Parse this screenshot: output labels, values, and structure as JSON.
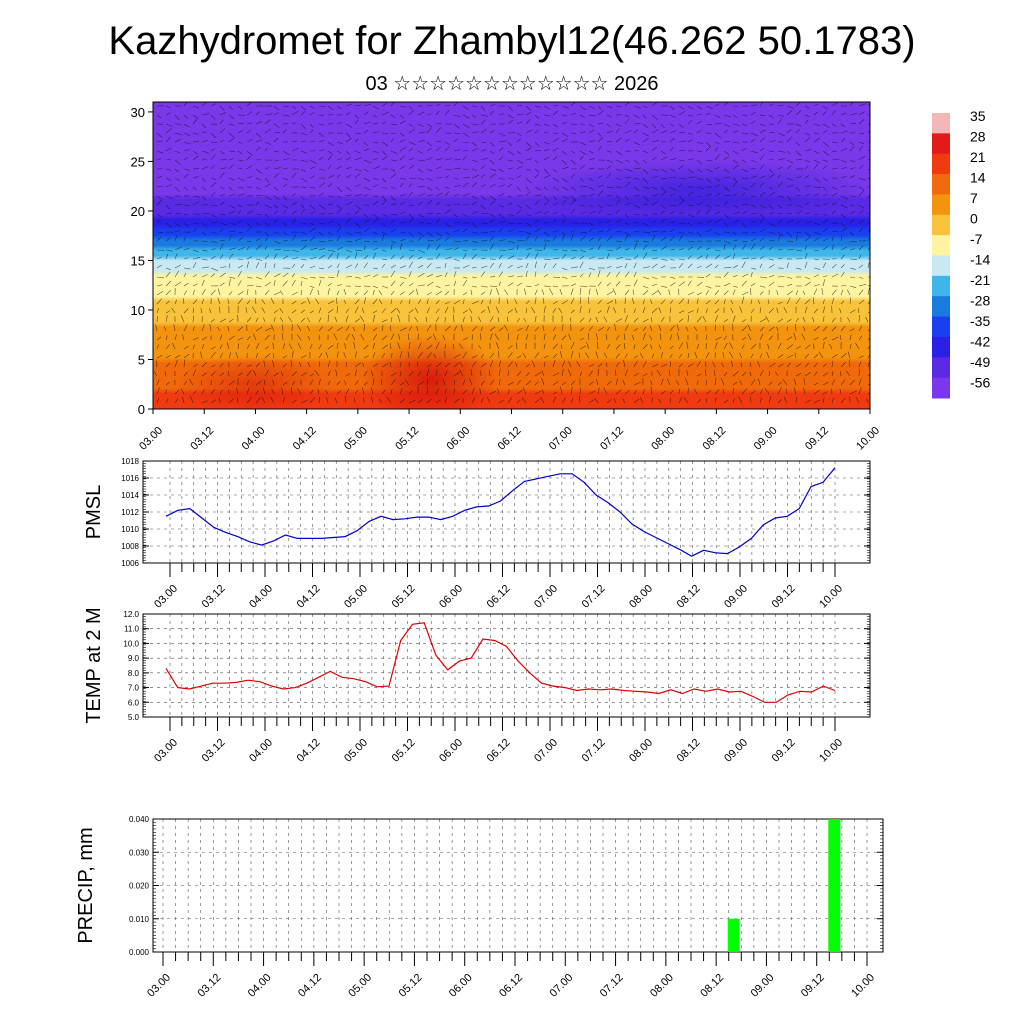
{
  "header": {
    "title": "Kazhydromet for Zhambyl12(46.262 50.1783)",
    "subtitle": "03 ☆☆☆☆☆☆☆☆☆☆☆☆ 2026"
  },
  "chart_data": [
    {
      "id": "cross_section",
      "type": "heatmap",
      "title": "",
      "x_ticks": [
        "03.00",
        "03.12",
        "04.00",
        "04.12",
        "05.00",
        "05.12",
        "06.00",
        "06.12",
        "07.00",
        "07.12",
        "08.00",
        "08.12",
        "09.00",
        "09.12",
        "10.00"
      ],
      "y_ticks": [
        0,
        5,
        10,
        15,
        20,
        25,
        30
      ],
      "ylim": [
        0,
        31
      ],
      "colorbar": {
        "labels": [
          "35",
          "28",
          "21",
          "14",
          "7",
          "0",
          "-7",
          "-14",
          "-21",
          "-28",
          "-35",
          "-42",
          "-49",
          "-56"
        ],
        "colors": [
          "#f2b8b8",
          "#e21a1a",
          "#f03a10",
          "#f06a0c",
          "#f4930e",
          "#f8c23a",
          "#fdf3a0",
          "#c8e8f2",
          "#3fb6ea",
          "#1a7ae0",
          "#1a3ff0",
          "#2a20e6",
          "#5a2ae4",
          "#7a38ea"
        ]
      },
      "temperature_profile": [
        {
          "height": 0,
          "value": 25
        },
        {
          "height": 5,
          "value": 14
        },
        {
          "height": 10,
          "value": 4
        },
        {
          "height": 14,
          "value": -8
        },
        {
          "height": 17,
          "value": -25
        },
        {
          "height": 20,
          "value": -45
        },
        {
          "height": 24,
          "value": -56
        },
        {
          "height": 27,
          "value": -50
        },
        {
          "height": 31,
          "value": -56
        }
      ],
      "wind_vectors": true
    },
    {
      "id": "pmsl",
      "type": "line",
      "ylabel": "PMSL",
      "x_ticks": [
        "03.00",
        "03.12",
        "04.00",
        "04.12",
        "05.00",
        "05.12",
        "06.00",
        "06.12",
        "07.00",
        "07.12",
        "08.00",
        "08.12",
        "09.00",
        "09.12",
        "10.00"
      ],
      "y_ticks": [
        "1006",
        "1008",
        "1010",
        "1012",
        "1014",
        "1016",
        "1018"
      ],
      "ylim": [
        1006,
        1018
      ],
      "color": "#0000cc",
      "series": [
        {
          "values": [
            1011.5,
            1012.2,
            1012.4,
            1011.3,
            1010.2,
            1009.6,
            1009.1,
            1008.5,
            1008.1,
            1008.6,
            1009.3,
            1008.9,
            1008.9,
            1008.9,
            1009.0,
            1009.1,
            1009.8,
            1010.9,
            1011.5,
            1011.1,
            1011.2,
            1011.4,
            1011.4,
            1011.1,
            1011.5,
            1012.2,
            1012.6,
            1012.7,
            1013.3,
            1014.5,
            1015.6,
            1015.9,
            1016.2,
            1016.5,
            1016.5,
            1015.5,
            1014.0,
            1013.1,
            1012.0,
            1010.6,
            1009.7,
            1009.0,
            1008.3,
            1007.6,
            1006.8,
            1007.5,
            1007.2,
            1007.1,
            1007.9,
            1008.9,
            1010.5,
            1011.3,
            1011.5,
            1012.4,
            1015.0,
            1015.5,
            1017.2
          ]
        }
      ]
    },
    {
      "id": "temp2m",
      "type": "line",
      "ylabel": "TEMP at 2 M",
      "x_ticks": [
        "03.00",
        "03.12",
        "04.00",
        "04.12",
        "05.00",
        "05.12",
        "06.00",
        "06.12",
        "07.00",
        "07.12",
        "08.00",
        "08.12",
        "09.00",
        "09.12",
        "10.00"
      ],
      "y_ticks": [
        "5.0",
        "6.0",
        "7.0",
        "8.0",
        "9.0",
        "10.0",
        "11.0",
        "12.0"
      ],
      "ylim": [
        5,
        12
      ],
      "color": "#dd0000",
      "series": [
        {
          "values": [
            8.3,
            7.0,
            6.9,
            7.1,
            7.3,
            7.3,
            7.35,
            7.5,
            7.4,
            7.1,
            6.9,
            7.0,
            7.3,
            7.7,
            8.1,
            7.7,
            7.6,
            7.4,
            7.05,
            7.1,
            10.2,
            11.3,
            11.4,
            9.2,
            8.2,
            8.8,
            9.0,
            10.3,
            10.2,
            9.8,
            8.8,
            8.0,
            7.3,
            7.1,
            7.0,
            6.8,
            6.9,
            6.85,
            6.9,
            6.8,
            6.75,
            6.7,
            6.6,
            6.85,
            6.6,
            6.9,
            6.75,
            6.9,
            6.7,
            6.75,
            6.4,
            6.0,
            6.0,
            6.5,
            6.75,
            6.7,
            7.1,
            6.8
          ]
        }
      ]
    },
    {
      "id": "precip",
      "type": "bar",
      "ylabel": "PRECIP, mm",
      "x_ticks": [
        "03.00",
        "03.12",
        "04.00",
        "04.12",
        "05.00",
        "05.12",
        "06.00",
        "06.12",
        "07.00",
        "07.12",
        "08.00",
        "08.12",
        "09.00",
        "09.12",
        "10.00"
      ],
      "y_ticks": [
        "0.000",
        "0.010",
        "0.020",
        "0.030",
        "0.040"
      ],
      "ylim": [
        0,
        0.04
      ],
      "color": "#00ff00",
      "bars": [
        {
          "x_index": 11.35,
          "value": 0.01
        },
        {
          "x_index": 13.35,
          "value": 0.04
        }
      ]
    }
  ]
}
